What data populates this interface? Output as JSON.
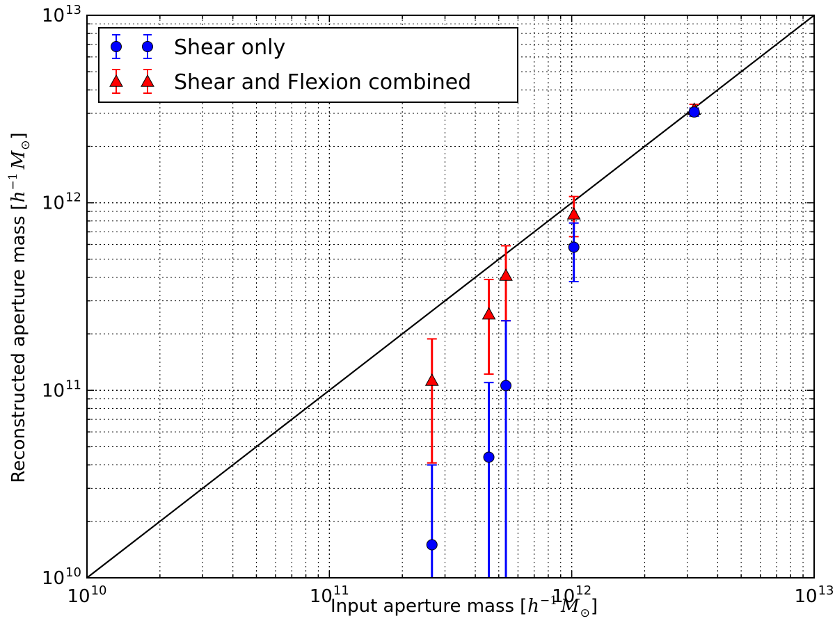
{
  "chart_data": {
    "type": "scatter",
    "x_scale": "log",
    "y_scale": "log",
    "xlim": [
      10000000000.0,
      10000000000000.0
    ],
    "ylim": [
      10000000000.0,
      10000000000000.0
    ],
    "grid": true,
    "legend_position": "top-left",
    "xlabel": "Input aperture mass",
    "xlabel_unit": "[h^-1 M_sun]",
    "ylabel": "Reconstructed aperture mass",
    "ylabel_unit": "[h^-1 M_sun]",
    "x_ticks": [
      {
        "base": "10",
        "exp": "10",
        "value": 10000000000.0
      },
      {
        "base": "10",
        "exp": "11",
        "value": 100000000000.0
      },
      {
        "base": "10",
        "exp": "12",
        "value": 1000000000000.0
      },
      {
        "base": "10",
        "exp": "13",
        "value": 10000000000000.0
      }
    ],
    "y_ticks": [
      {
        "base": "10",
        "exp": "10",
        "value": 10000000000.0
      },
      {
        "base": "10",
        "exp": "11",
        "value": 100000000000.0
      },
      {
        "base": "10",
        "exp": "12",
        "value": 1000000000000.0
      },
      {
        "base": "10",
        "exp": "13",
        "value": 10000000000000.0
      }
    ],
    "reference_line": {
      "x": [
        10000000000.0,
        10000000000000.0
      ],
      "y": [
        10000000000.0,
        10000000000000.0
      ],
      "color": "#000000"
    },
    "series": [
      {
        "name": "Shear only",
        "marker": "circle",
        "color": "#0000ff",
        "bar_color": "#0000ff",
        "points": [
          {
            "x": 265000000000.0,
            "y": 15000000000.0,
            "ylo": 10000000000.0,
            "yhi": 40000000000.0
          },
          {
            "x": 455000000000.0,
            "y": 44000000000.0,
            "ylo": 10000000000.0,
            "yhi": 110000000000.0
          },
          {
            "x": 535000000000.0,
            "y": 106000000000.0,
            "ylo": 10000000000.0,
            "yhi": 235000000000.0
          },
          {
            "x": 1020000000000.0,
            "y": 580000000000.0,
            "ylo": 380000000000.0,
            "yhi": 780000000000.0
          },
          {
            "x": 3200000000000.0,
            "y": 3050000000000.0,
            "ylo": 2900000000000.0,
            "yhi": 3200000000000.0
          }
        ]
      },
      {
        "name": "Shear and Flexion combined",
        "marker": "triangle",
        "color": "#ff0000",
        "bar_color": "#ff0000",
        "points": [
          {
            "x": 265000000000.0,
            "y": 113000000000.0,
            "ylo": 41000000000.0,
            "yhi": 188000000000.0
          },
          {
            "x": 455000000000.0,
            "y": 255000000000.0,
            "ylo": 122000000000.0,
            "yhi": 390000000000.0
          },
          {
            "x": 535000000000.0,
            "y": 410000000000.0,
            "ylo": 235000000000.0,
            "yhi": 590000000000.0
          },
          {
            "x": 1020000000000.0,
            "y": 870000000000.0,
            "ylo": 660000000000.0,
            "yhi": 1080000000000.0
          },
          {
            "x": 3200000000000.0,
            "y": 3150000000000.0,
            "ylo": 2950000000000.0,
            "yhi": 3350000000000.0
          }
        ]
      }
    ]
  }
}
